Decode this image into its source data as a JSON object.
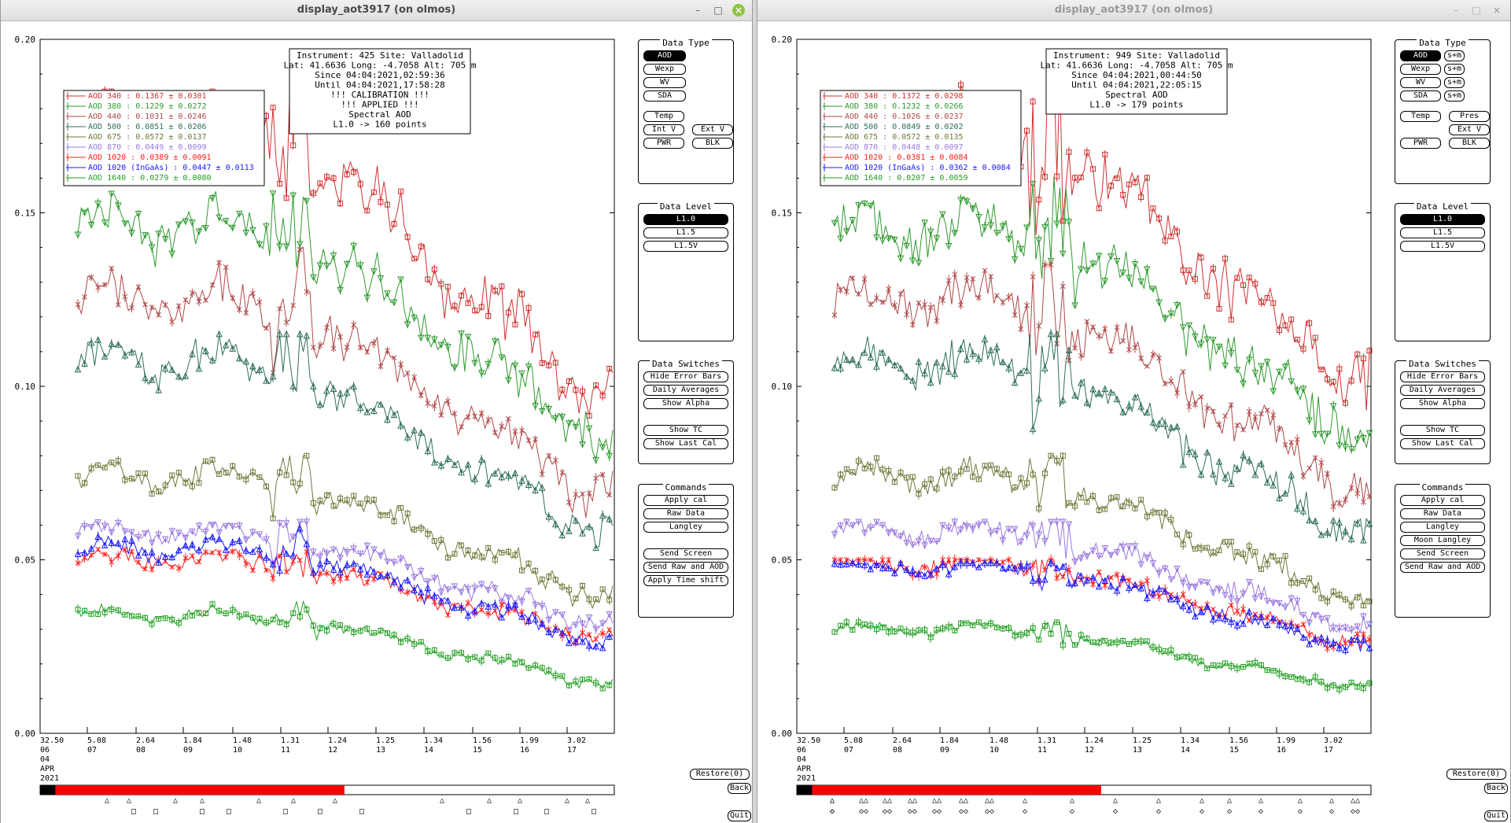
{
  "windows": [
    {
      "id": "left",
      "title": "display_aot3917 (on olmos)",
      "active": true,
      "info": [
        "Instrument: 425 Site: Valladolid",
        "Lat: 41.6636 Long: -4.7058 Alt: 705 m",
        "Since 04:04:2021,02:59:36",
        "Until 04:04:2021,17:58:28",
        "!!! CALIBRATION !!!",
        "!!!  APPLIED   !!!",
        "Spectral AOD",
        "L1.0 -> 160 points"
      ],
      "legend": [
        {
          "label": "AOD 340   : 0.1367 ± 0.0301",
          "color": "#d03030"
        },
        {
          "label": "AOD 380   : 0.1229 ± 0.0272",
          "color": "#2e9a2e"
        },
        {
          "label": "AOD 440   : 0.1031 ± 0.0246",
          "color": "#b04848"
        },
        {
          "label": "AOD 500   : 0.0851 ± 0.0206",
          "color": "#2f6f5a"
        },
        {
          "label": "AOD 675   : 0.0572 ± 0.0137",
          "color": "#6e7a3a"
        },
        {
          "label": "AOD 870   : 0.0449 ± 0.0099",
          "color": "#9a78e0"
        },
        {
          "label": "AOD 1020   : 0.0389 ± 0.0091",
          "color": "#ff1a1a"
        },
        {
          "label": "AOD 1020 (InGaAs)  : 0.0447 ± 0.0113",
          "color": "#1a1aff"
        },
        {
          "label": "AOD 1640   : 0.0279 ± 0.0080",
          "color": "#22a022"
        }
      ],
      "time_ticks": [
        {
          "t": "32.50",
          "h": "06",
          "extra": [
            "04",
            "APR",
            "2021"
          ]
        },
        {
          "t": "5.08",
          "h": "07"
        },
        {
          "t": "2.64",
          "h": "08"
        },
        {
          "t": "1.84",
          "h": "09"
        },
        {
          "t": "1.48",
          "h": "10"
        },
        {
          "t": "1.31",
          "h": "11"
        },
        {
          "t": "1.24",
          "h": "12"
        },
        {
          "t": "1.25",
          "h": "13"
        },
        {
          "t": "1.34",
          "h": "14"
        },
        {
          "t": "1.56",
          "h": "15"
        },
        {
          "t": "1.99",
          "h": "16"
        },
        {
          "t": "3.02",
          "h": "17"
        }
      ],
      "data_type_buttons": [
        {
          "label": "AOD",
          "selected": true,
          "extra": ""
        },
        {
          "label": "Wexp",
          "selected": false,
          "extra": ""
        },
        {
          "label": "WV",
          "selected": false,
          "extra": ""
        },
        {
          "label": "SDA",
          "selected": false,
          "extra": ""
        }
      ],
      "temp_buttons": [
        {
          "label": "Temp",
          "row": 0,
          "col": 0
        },
        {
          "label": "Int V",
          "row": 1,
          "col": 0
        },
        {
          "label": "Ext V",
          "row": 1,
          "col": 1
        },
        {
          "label": "PWR",
          "row": 2,
          "col": 0
        },
        {
          "label": "BLK",
          "row": 2,
          "col": 1
        }
      ],
      "commands": [
        "Apply cal",
        "Raw Data",
        "Langley",
        "",
        "Send Screen",
        "Send Raw and AOD",
        "Apply Time shift"
      ],
      "timeline_fraction": [
        0.027,
        0.53
      ],
      "markers": {
        "top": [
          "△",
          "△",
          "△",
          "△",
          "△",
          "△",
          "△",
          "△",
          "△",
          "△",
          "△",
          "△"
        ],
        "bottom": [
          "□",
          "□",
          "□",
          "□",
          "□",
          "□",
          "□",
          "□",
          "□",
          "□",
          "□"
        ]
      }
    },
    {
      "id": "right",
      "title": "display_aot3917 (on olmos)",
      "active": false,
      "info": [
        "Instrument: 949 Site: Valladolid",
        "Lat: 41.6636 Long: -4.7058 Alt: 705 m",
        "Since 04:04:2021,00:44:50",
        "Until 04:04:2021,22:05:15",
        "Spectral AOD",
        "L1.0 -> 179 points"
      ],
      "legend": [
        {
          "label": "AOD 340   : 0.1372 ± 0.0298",
          "color": "#d03030"
        },
        {
          "label": "AOD 380   : 0.1232 ± 0.0266",
          "color": "#2e9a2e"
        },
        {
          "label": "AOD 440   : 0.1026 ± 0.0237",
          "color": "#b04848"
        },
        {
          "label": "AOD 500   : 0.0849 ± 0.0202",
          "color": "#2f6f5a"
        },
        {
          "label": "AOD 675   : 0.0572 ± 0.0135",
          "color": "#6e7a3a"
        },
        {
          "label": "AOD 870   : 0.0448 ± 0.0097",
          "color": "#9a78e0"
        },
        {
          "label": "AOD 1020   : 0.0381 ± 0.0084",
          "color": "#ff1a1a"
        },
        {
          "label": "AOD 1020 (InGaAs)  : 0.0362 ± 0.0084",
          "color": "#1a1aff"
        },
        {
          "label": "AOD 1640   : 0.0207 ± 0.0059",
          "color": "#22a022"
        }
      ],
      "time_ticks": [
        {
          "t": "32.50",
          "h": "06",
          "extra": [
            "04",
            "APR",
            "2021"
          ]
        },
        {
          "t": "5.08",
          "h": "07"
        },
        {
          "t": "2.64",
          "h": "08"
        },
        {
          "t": "1.84",
          "h": "09"
        },
        {
          "t": "1.48",
          "h": "10"
        },
        {
          "t": "1.31",
          "h": "11"
        },
        {
          "t": "1.24",
          "h": "12"
        },
        {
          "t": "1.25",
          "h": "13"
        },
        {
          "t": "1.34",
          "h": "14"
        },
        {
          "t": "1.56",
          "h": "15"
        },
        {
          "t": "1.99",
          "h": "16"
        },
        {
          "t": "3.02",
          "h": "17"
        }
      ],
      "data_type_buttons": [
        {
          "label": "AOD",
          "selected": true,
          "extra": "s+m"
        },
        {
          "label": "Wexp",
          "selected": false,
          "extra": "s+m"
        },
        {
          "label": "WV",
          "selected": false,
          "extra": "s+m"
        },
        {
          "label": "SDA",
          "selected": false,
          "extra": "s+m"
        }
      ],
      "temp_buttons": [
        {
          "label": "Temp",
          "row": 0,
          "col": 0
        },
        {
          "label": "Pres",
          "row": 0,
          "col": 1
        },
        {
          "label": "Ext V",
          "row": 1,
          "col": 1
        },
        {
          "label": "PWR",
          "row": 2,
          "col": 0
        },
        {
          "label": "BLK",
          "row": 2,
          "col": 1
        }
      ],
      "commands": [
        "Apply cal",
        "Raw Data",
        "Langley",
        "Moon Langley",
        "Send Screen",
        "Send Raw and AOD"
      ],
      "timeline_fraction": [
        0.027,
        0.53
      ],
      "markers": {
        "top": [
          "△",
          "△△",
          "△△",
          "△△",
          "△△",
          "△△",
          "△△",
          "△",
          "△",
          "△",
          "△",
          "△",
          "△",
          "△",
          "△",
          "△",
          "△△",
          "△"
        ],
        "bottom": [
          "◇",
          "◇◇",
          "◇◇",
          "◇◇",
          "◇◇",
          "◇◇",
          "◇◇",
          "◇",
          "◇",
          "◇",
          "◇",
          "◇",
          "◇",
          "◇",
          "◇",
          "◇",
          "◇◇",
          "◇"
        ]
      }
    }
  ],
  "chart_data": [
    {
      "type": "line",
      "title": "",
      "xlabel": "",
      "ylabel": "",
      "ylim": [
        0,
        0.2
      ],
      "yticks": [
        "0.20",
        "0.15",
        "0.10",
        "0.05",
        "0.00"
      ],
      "grid": false,
      "legend_position": "top-left",
      "series": [
        {
          "name": "AOD 340",
          "color": "#d03030",
          "marker": "square",
          "start": 0.175,
          "end": 0.098,
          "peak": 0.185
        },
        {
          "name": "AOD 380",
          "color": "#2e9a2e",
          "marker": "triangle-down",
          "start": 0.146,
          "end": 0.087,
          "peak": 0.165
        },
        {
          "name": "AOD 440",
          "color": "#b04848",
          "marker": "x",
          "start": 0.125,
          "end": 0.07,
          "peak": 0.14
        },
        {
          "name": "AOD 500",
          "color": "#2f6f5a",
          "marker": "triangle",
          "start": 0.107,
          "end": 0.059,
          "peak": 0.115
        },
        {
          "name": "AOD 675",
          "color": "#6e7a3a",
          "marker": "square",
          "start": 0.074,
          "end": 0.04,
          "peak": 0.08
        },
        {
          "name": "AOD 870",
          "color": "#9a78e0",
          "marker": "triangle-down",
          "start": 0.058,
          "end": 0.032,
          "peak": 0.061
        },
        {
          "name": "AOD 1020",
          "color": "#ff1a1a",
          "marker": "x",
          "start": 0.05,
          "end": 0.028,
          "peak": 0.053
        },
        {
          "name": "AOD 1020 (InGaAs)",
          "color": "#1a1aff",
          "marker": "triangle",
          "start": 0.053,
          "end": 0.027,
          "peak": 0.06
        },
        {
          "name": "AOD 1640",
          "color": "#22a022",
          "marker": "square",
          "start": 0.034,
          "end": 0.015,
          "peak": 0.038
        }
      ]
    },
    {
      "type": "line",
      "title": "",
      "xlabel": "",
      "ylabel": "",
      "ylim": [
        0,
        0.2
      ],
      "yticks": [
        "0.20",
        "0.15",
        "0.10",
        "0.05",
        "0.00"
      ],
      "grid": false,
      "legend_position": "top-left",
      "series": [
        {
          "name": "AOD 340",
          "color": "#d03030",
          "marker": "square",
          "start": 0.175,
          "end": 0.102,
          "peak": 0.19
        },
        {
          "name": "AOD 380",
          "color": "#2e9a2e",
          "marker": "triangle-down",
          "start": 0.146,
          "end": 0.088,
          "peak": 0.17
        },
        {
          "name": "AOD 440",
          "color": "#b04848",
          "marker": "x",
          "start": 0.125,
          "end": 0.072,
          "peak": 0.135
        },
        {
          "name": "AOD 500",
          "color": "#2f6f5a",
          "marker": "triangle",
          "start": 0.107,
          "end": 0.059,
          "peak": 0.115
        },
        {
          "name": "AOD 675",
          "color": "#6e7a3a",
          "marker": "square",
          "start": 0.074,
          "end": 0.04,
          "peak": 0.08
        },
        {
          "name": "AOD 870",
          "color": "#9a78e0",
          "marker": "triangle-down",
          "start": 0.058,
          "end": 0.032,
          "peak": 0.061
        },
        {
          "name": "AOD 1020",
          "color": "#ff1a1a",
          "marker": "x",
          "start": 0.049,
          "end": 0.027,
          "peak": 0.05
        },
        {
          "name": "AOD 1020 (InGaAs)",
          "color": "#1a1aff",
          "marker": "triangle",
          "start": 0.048,
          "end": 0.026,
          "peak": 0.049
        },
        {
          "name": "AOD 1640",
          "color": "#22a022",
          "marker": "square",
          "start": 0.03,
          "end": 0.014,
          "peak": 0.032
        }
      ]
    }
  ],
  "ui": {
    "data_type_title": "Data Type",
    "data_level_title": "Data Level",
    "data_levels": [
      {
        "label": "L1.0",
        "selected": true
      },
      {
        "label": "L1.5",
        "selected": false
      },
      {
        "label": "L1.5V",
        "selected": false
      }
    ],
    "switches_title": "Data Switches",
    "switches": [
      "Hide Error Bars",
      "Daily Averages",
      "Show Alpha",
      "",
      "Show TC",
      "Show Last Cal"
    ],
    "commands_title": "Commands",
    "restore_label": "Restore(0)",
    "back_label": "Back",
    "quit_label": "Quit",
    "colors": {
      "timeline_black": "#000000",
      "timeline_red": "#ff0000"
    }
  }
}
